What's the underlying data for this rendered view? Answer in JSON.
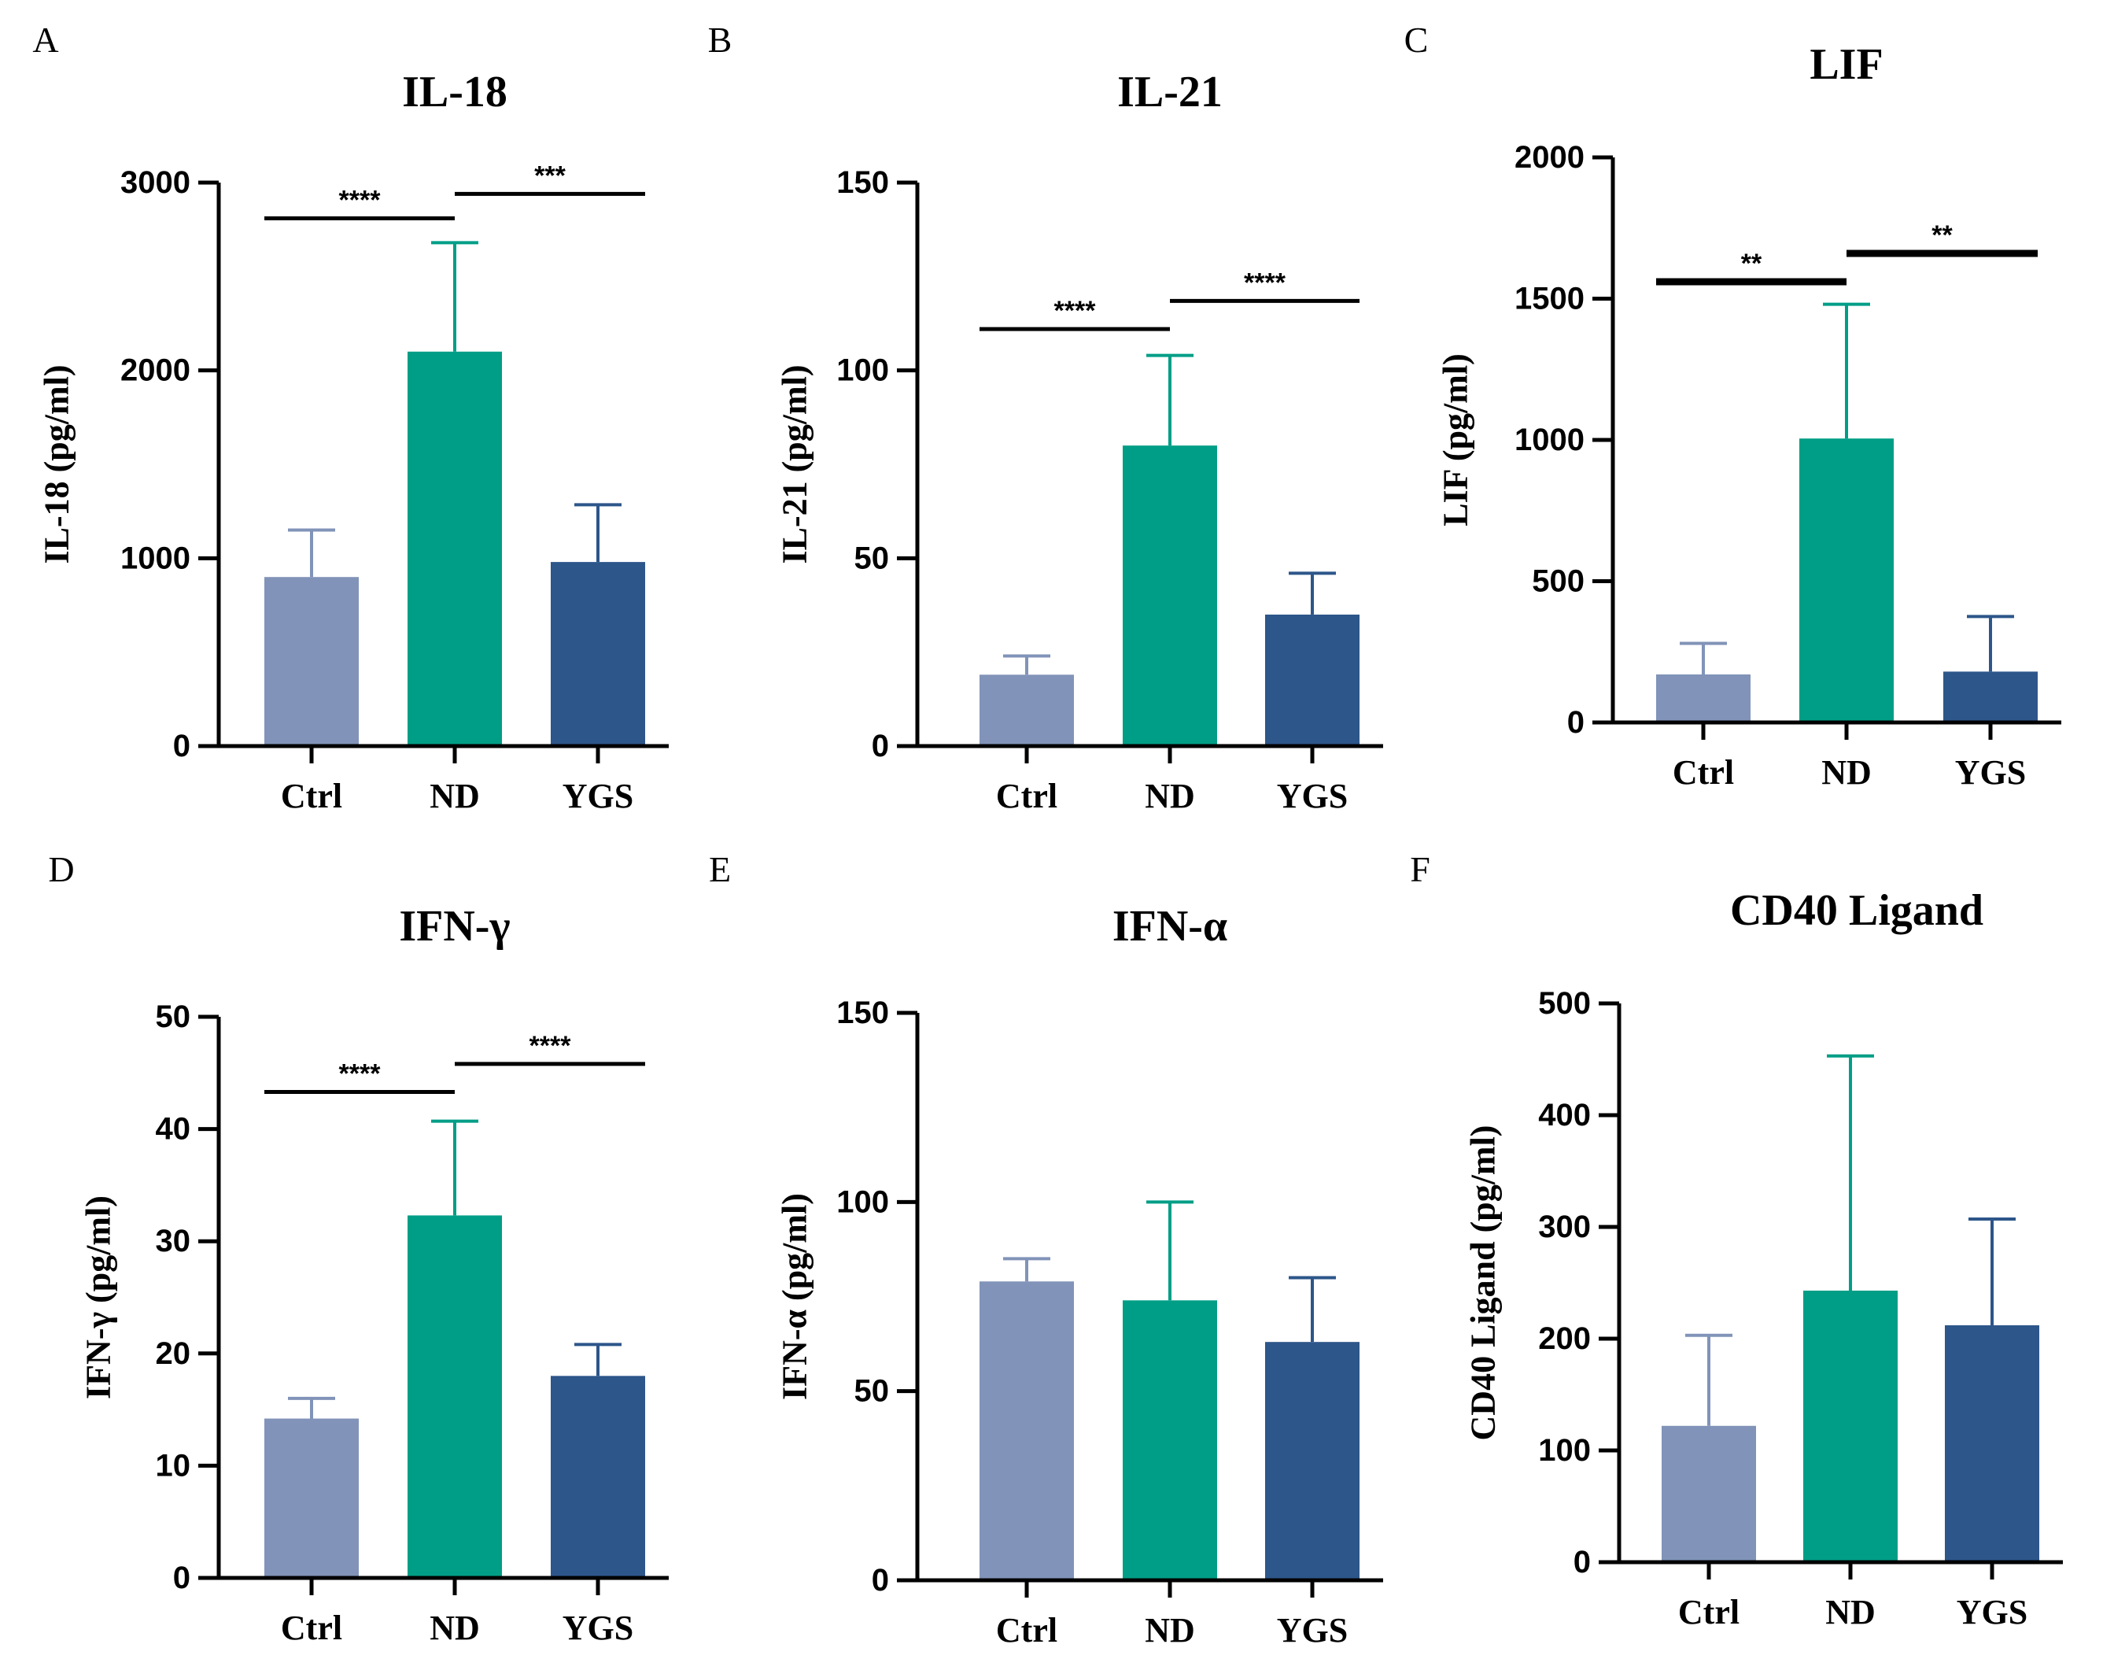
{
  "colors": {
    "Ctrl": "#8193b8",
    "ND": "#009e86",
    "YGS": "#2d568a",
    "axis": "#000000"
  },
  "chart_data": [
    {
      "panel": "A",
      "type": "bar",
      "title": "IL-18",
      "ylabel": "IL-18 (pg/ml)",
      "categories": [
        "Ctrl",
        "ND",
        "YGS"
      ],
      "values": [
        900,
        2100,
        980
      ],
      "error_upper": [
        1150,
        2680,
        1285
      ],
      "ylim": [
        0,
        3000
      ],
      "yticks": [
        0,
        1000,
        2000,
        3000
      ],
      "significance": [
        {
          "from": 0,
          "to": 1,
          "label": "****",
          "y": 2810
        },
        {
          "from": 1,
          "to": 2,
          "label": "***",
          "y": 2940
        }
      ]
    },
    {
      "panel": "B",
      "type": "bar",
      "title": "IL-21",
      "ylabel": "IL-21 (pg/ml)",
      "categories": [
        "Ctrl",
        "ND",
        "YGS"
      ],
      "values": [
        19,
        80,
        35
      ],
      "error_upper": [
        24,
        104,
        46
      ],
      "ylim": [
        0,
        150
      ],
      "yticks": [
        0,
        50,
        100,
        150
      ],
      "significance": [
        {
          "from": 0,
          "to": 1,
          "label": "****",
          "y": 111
        },
        {
          "from": 1,
          "to": 2,
          "label": "****",
          "y": 118.5
        }
      ]
    },
    {
      "panel": "C",
      "type": "bar",
      "title": "LIF",
      "ylabel": "LIF (pg/ml)",
      "categories": [
        "Ctrl",
        "ND",
        "YGS"
      ],
      "values": [
        170,
        1005,
        180
      ],
      "error_upper": [
        280,
        1480,
        375
      ],
      "ylim": [
        0,
        2000
      ],
      "yticks": [
        0,
        500,
        1000,
        1500,
        2000
      ],
      "significance": [
        {
          "from": 0,
          "to": 1,
          "label": "**",
          "y": 1560
        },
        {
          "from": 1,
          "to": 2,
          "label": "**",
          "y": 1660
        }
      ]
    },
    {
      "panel": "D",
      "type": "bar",
      "title": "IFN-γ",
      "ylabel": "IFN-γ (pg/ml)",
      "categories": [
        "Ctrl",
        "ND",
        "YGS"
      ],
      "values": [
        14.2,
        32.3,
        18
      ],
      "error_upper": [
        16,
        40.7,
        20.8
      ],
      "ylim": [
        0,
        50
      ],
      "yticks": [
        0,
        10,
        20,
        30,
        40,
        50
      ],
      "significance": [
        {
          "from": 0,
          "to": 1,
          "label": "****",
          "y": 43.3
        },
        {
          "from": 1,
          "to": 2,
          "label": "****",
          "y": 45.8
        }
      ]
    },
    {
      "panel": "E",
      "type": "bar",
      "title": "IFN-α",
      "ylabel": "IFN-α (pg/ml)",
      "categories": [
        "Ctrl",
        "ND",
        "YGS"
      ],
      "values": [
        79,
        74,
        63
      ],
      "error_upper": [
        85,
        100,
        80
      ],
      "ylim": [
        0,
        150
      ],
      "yticks": [
        0,
        50,
        100,
        150
      ],
      "significance": []
    },
    {
      "panel": "F",
      "type": "bar",
      "title": "CD40 Ligand",
      "ylabel": "CD40 Ligand (pg/ml)",
      "categories": [
        "Ctrl",
        "ND",
        "YGS"
      ],
      "values": [
        122,
        243,
        212
      ],
      "error_upper": [
        203,
        453,
        307
      ],
      "ylim": [
        0,
        500
      ],
      "yticks": [
        0,
        100,
        200,
        300,
        400,
        500
      ],
      "significance": []
    }
  ]
}
